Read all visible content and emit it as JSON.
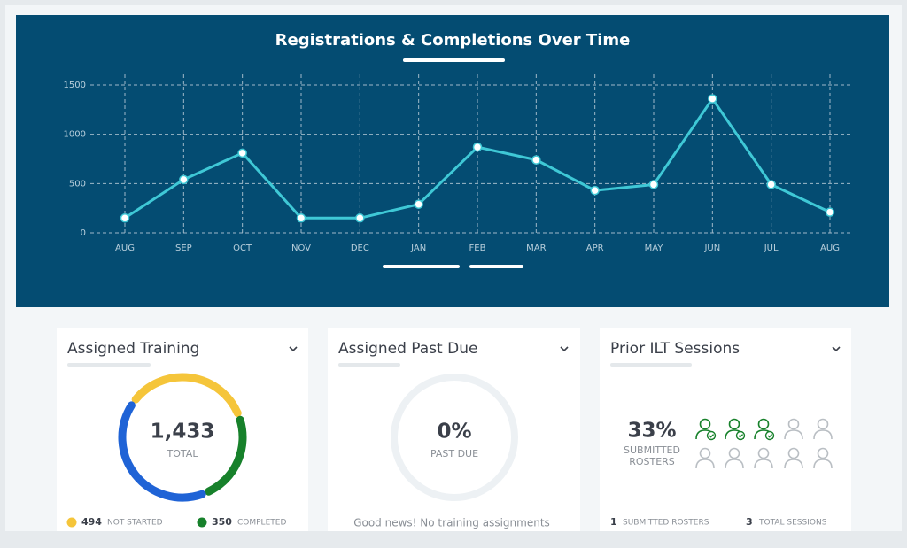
{
  "chart_data": {
    "type": "line",
    "title": "Registrations & Completions Over Time",
    "categories": [
      "AUG",
      "SEP",
      "OCT",
      "NOV",
      "DEC",
      "JAN",
      "FEB",
      "MAR",
      "APR",
      "MAY",
      "JUN",
      "JUL",
      "AUG"
    ],
    "values": [
      150,
      540,
      810,
      150,
      150,
      290,
      870,
      740,
      430,
      490,
      1360,
      490,
      210
    ],
    "color": "#3fc8d6",
    "ylim": [
      0,
      1500
    ],
    "yticks": [
      0,
      500,
      1000,
      1500
    ],
    "grid": true
  },
  "cards": [
    {
      "title": "Assigned Training",
      "total": {
        "value": 1433,
        "label": "1,433"
      },
      "total_label": "TOTAL",
      "segments": [
        {
          "name": "NOT STARTED",
          "value": 494,
          "color": "#f5c53a"
        },
        {
          "name": "COMPLETED",
          "value": 350,
          "color": "#17812b"
        }
      ],
      "remainder_color": "#1f63d6"
    },
    {
      "title": "Assigned Past Due",
      "percent": {
        "value": 0,
        "label": "0%"
      },
      "percent_label": "PAST DUE",
      "message": "Good news! No training assignments"
    },
    {
      "title": "Prior ILT Sessions",
      "percent": {
        "value": 33,
        "label": "33%"
      },
      "percent_label": "SUBMITTED ROSTERS",
      "stats": [
        {
          "value": 1,
          "label": "SUBMITTED ROSTERS"
        },
        {
          "value": 3,
          "label": "TOTAL SESSIONS"
        }
      ]
    }
  ]
}
